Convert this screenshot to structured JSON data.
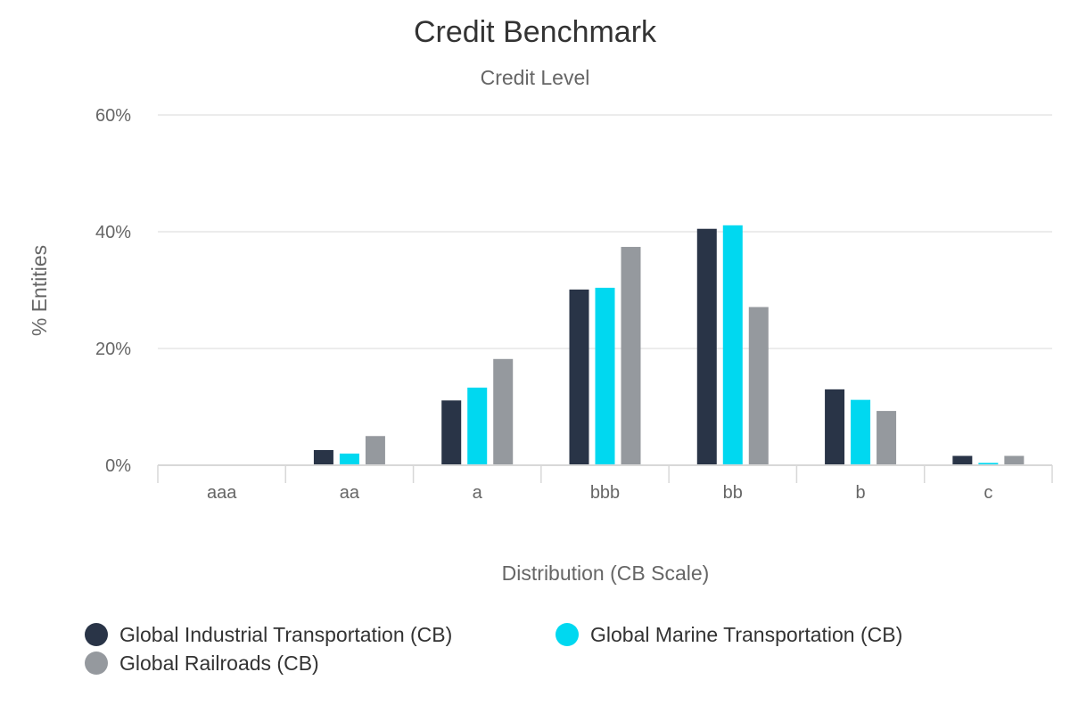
{
  "chart_data": {
    "type": "bar",
    "title": "Credit Benchmark",
    "subtitle": "Credit Level",
    "xlabel": "Distribution (CB Scale)",
    "ylabel": "% Entities",
    "categories": [
      "aaa",
      "aa",
      "a",
      "bbb",
      "bb",
      "b",
      "c"
    ],
    "ylim": [
      0,
      60
    ],
    "yticks": [
      0,
      20,
      40,
      60
    ],
    "ytick_labels": [
      "0%",
      "20%",
      "40%",
      "60%"
    ],
    "grid": true,
    "legend_position": "bottom-left",
    "series": [
      {
        "name": "Global Industrial Transportation (CB)",
        "color": "#293447",
        "values": [
          0,
          2.6,
          11.1,
          30.1,
          40.5,
          13.0,
          1.6
        ]
      },
      {
        "name": "Global Marine Transportation (CB)",
        "color": "#00d8f0",
        "values": [
          0,
          2.0,
          13.3,
          30.4,
          41.1,
          11.2,
          0.4
        ]
      },
      {
        "name": "Global Railroads (CB)",
        "color": "#95999e",
        "values": [
          0,
          5.0,
          18.2,
          37.4,
          27.1,
          9.3,
          1.6
        ]
      }
    ]
  }
}
